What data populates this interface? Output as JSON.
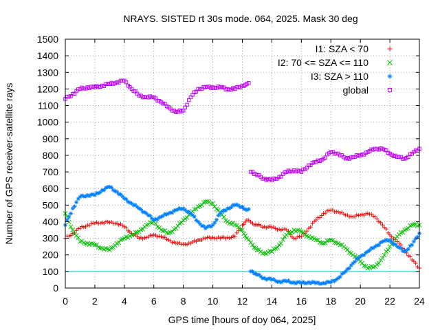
{
  "chart_data": {
    "type": "scatter",
    "title": "NRAYS. SISTED rt 30s mode. 064, 2025. Mask 30 deg",
    "xlabel": "GPS time [hours of doy 064, 2025]",
    "ylabel": "Number of GPS receiver-satellite rays",
    "xlim": [
      0,
      24
    ],
    "ylim": [
      0,
      1500
    ],
    "xticks": [
      0,
      2,
      4,
      6,
      8,
      10,
      12,
      14,
      16,
      18,
      20,
      22,
      24
    ],
    "yticks": [
      0,
      100,
      200,
      300,
      400,
      500,
      600,
      700,
      800,
      900,
      1000,
      1100,
      1200,
      1300,
      1400,
      1500
    ],
    "grid": true,
    "legend_position": "top-right",
    "reference_line": {
      "y": 100,
      "color": "#00c8c8"
    },
    "series": [
      {
        "name": "I1: SZA < 70",
        "marker": "+",
        "color": "#ff0000",
        "x": [
          0,
          0.5,
          1,
          1.5,
          2,
          2.5,
          3,
          3.5,
          4,
          4.5,
          5,
          5.5,
          6,
          6.5,
          7,
          7.5,
          8,
          8.5,
          9,
          9.5,
          10,
          10.5,
          11,
          11.5,
          12,
          12.3,
          12.7,
          13,
          13.5,
          14,
          14.5,
          15,
          15.5,
          16,
          16.5,
          17,
          17.5,
          18,
          18.5,
          19,
          19.5,
          20,
          20.5,
          21,
          21.5,
          22,
          22.5,
          23,
          23.5,
          24
        ],
        "values": [
          300,
          330,
          360,
          380,
          390,
          395,
          395,
          390,
          370,
          330,
          300,
          305,
          320,
          310,
          290,
          270,
          265,
          270,
          290,
          300,
          305,
          300,
          305,
          310,
          380,
          410,
          390,
          380,
          370,
          365,
          355,
          350,
          300,
          310,
          360,
          410,
          450,
          470,
          460,
          440,
          430,
          440,
          450,
          430,
          380,
          320,
          280,
          230,
          170,
          120
        ]
      },
      {
        "name": "I2: 70 <= SZA <= 110",
        "marker": "x",
        "color": "#00c000",
        "x": [
          0,
          0.5,
          1,
          1.5,
          2,
          2.5,
          3,
          3.5,
          4,
          4.5,
          5,
          5.5,
          6,
          6.5,
          7,
          7.5,
          8,
          8.5,
          9,
          9.5,
          10,
          10.5,
          11,
          11.5,
          12,
          12.3,
          12.7,
          13,
          13.5,
          14,
          14.5,
          15,
          15.5,
          16,
          16.5,
          17,
          17.5,
          18,
          18.5,
          19,
          19.5,
          20,
          20.5,
          21,
          21.5,
          22,
          22.5,
          23,
          23.5,
          24
        ],
        "values": [
          450,
          350,
          280,
          270,
          260,
          240,
          230,
          270,
          300,
          320,
          340,
          380,
          400,
          350,
          330,
          360,
          410,
          450,
          490,
          520,
          510,
          450,
          400,
          380,
          350,
          300,
          260,
          230,
          210,
          220,
          260,
          320,
          350,
          340,
          310,
          290,
          270,
          290,
          270,
          240,
          200,
          160,
          120,
          130,
          180,
          250,
          310,
          350,
          380,
          380
        ]
      },
      {
        "name": "I3: SZA > 110",
        "marker": "*",
        "color": "#0080ff",
        "x": [
          0,
          0.5,
          1,
          1.5,
          2,
          2.5,
          3,
          3.5,
          4,
          4.5,
          5,
          5.5,
          6,
          6.5,
          7,
          7.5,
          8,
          8.5,
          9,
          9.5,
          10,
          10.5,
          11,
          11.5,
          12,
          12.3,
          12.7,
          13,
          13.5,
          14,
          14.5,
          15,
          15.5,
          16,
          16.5,
          17,
          17.5,
          18,
          18.5,
          19,
          19.5,
          20,
          20.5,
          21,
          21.5,
          22,
          22.5,
          23,
          23.5,
          24
        ],
        "values": [
          380,
          480,
          550,
          560,
          560,
          590,
          610,
          580,
          540,
          510,
          480,
          450,
          410,
          430,
          450,
          470,
          480,
          450,
          400,
          360,
          380,
          450,
          480,
          500,
          490,
          470,
          100,
          80,
          60,
          50,
          40,
          40,
          35,
          30,
          35,
          30,
          30,
          35,
          60,
          100,
          150,
          190,
          220,
          250,
          280,
          290,
          250,
          220,
          260,
          330
        ]
      },
      {
        "name": "global",
        "marker": "square",
        "color": "#c000ff",
        "x": [
          0,
          0.5,
          1,
          1.5,
          2,
          2.5,
          3,
          3.5,
          4,
          4.5,
          5,
          5.5,
          6,
          6.5,
          7,
          7.5,
          8,
          8.5,
          9,
          9.5,
          10,
          10.5,
          11,
          11.5,
          12,
          12.3,
          12.7,
          13,
          13.5,
          14,
          14.5,
          15,
          15.5,
          16,
          16.5,
          17,
          17.5,
          18,
          18.5,
          19,
          19.5,
          20,
          20.5,
          21,
          21.5,
          22,
          22.5,
          23,
          23.5,
          24
        ],
        "values": [
          1140,
          1170,
          1200,
          1210,
          1210,
          1220,
          1230,
          1240,
          1250,
          1200,
          1160,
          1150,
          1150,
          1120,
          1090,
          1060,
          1070,
          1150,
          1200,
          1210,
          1210,
          1210,
          1200,
          1200,
          1220,
          1230,
          700,
          680,
          660,
          650,
          670,
          700,
          710,
          700,
          740,
          760,
          780,
          820,
          810,
          780,
          790,
          800,
          820,
          840,
          840,
          810,
          790,
          780,
          810,
          840
        ]
      }
    ]
  }
}
